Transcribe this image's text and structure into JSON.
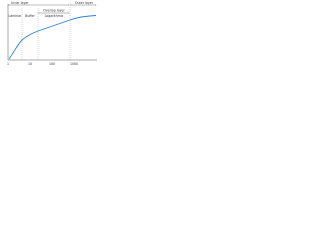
{
  "diagram": {
    "regions": {
      "inner": "Inner layer",
      "outer": "Outer layer",
      "overlap": "Overlap layer"
    },
    "sublayers": [
      "Laminar",
      "Buffer",
      "Logarithmic"
    ],
    "x_ticks": [
      "1",
      "10",
      "100",
      "1000"
    ]
  }
}
